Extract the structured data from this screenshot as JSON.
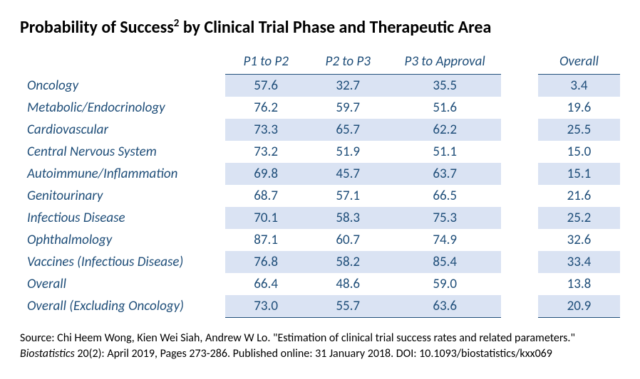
{
  "title_prefix": "Probability of Success",
  "title_sup": "2",
  "title_suffix": " by Clinical Trial Phase and Therapeutic Area",
  "table": {
    "type": "table",
    "header_color": "#1f4e79",
    "band_color_even": "#dae3f3",
    "band_color_odd": "#ffffff",
    "text_color": "#1f4e79",
    "border_color": "#1f4e79",
    "font_size_pt": 14,
    "columns": [
      "P1 to P2",
      "P2 to P3",
      "P3 to Approval",
      "Overall"
    ],
    "rows": [
      {
        "label": "Oncology",
        "values": [
          "57.6",
          "32.7",
          "35.5",
          "3.4"
        ]
      },
      {
        "label": "Metabolic/Endocrinology",
        "values": [
          "76.2",
          "59.7",
          "51.6",
          "19.6"
        ]
      },
      {
        "label": "Cardiovascular",
        "values": [
          "73.3",
          "65.7",
          "62.2",
          "25.5"
        ]
      },
      {
        "label": "Central Nervous System",
        "values": [
          "73.2",
          "51.9",
          "51.1",
          "15.0"
        ]
      },
      {
        "label": "Autoimmune/Inflammation",
        "values": [
          "69.8",
          "45.7",
          "63.7",
          "15.1"
        ]
      },
      {
        "label": "Genitourinary",
        "values": [
          "68.7",
          "57.1",
          "66.5",
          "21.6"
        ]
      },
      {
        "label": "Infectious Disease",
        "values": [
          "70.1",
          "58.3",
          "75.3",
          "25.2"
        ]
      },
      {
        "label": "Ophthalmology",
        "values": [
          "87.1",
          "60.7",
          "74.9",
          "32.6"
        ]
      },
      {
        "label": "Vaccines (Infectious Disease)",
        "values": [
          "76.8",
          "58.2",
          "85.4",
          "33.4"
        ]
      },
      {
        "label": "Overall",
        "values": [
          "66.4",
          "48.6",
          "59.0",
          "13.8"
        ]
      },
      {
        "label": "Overall (Excluding Oncology)",
        "values": [
          "73.0",
          "55.7",
          "63.6",
          "20.9"
        ]
      }
    ]
  },
  "source": {
    "prefix": "Source: Chi Heem Wong, Kien Wei Siah, Andrew W Lo. \"Estimation of clinical trial success rates and related parameters.\" ",
    "journal": "Biostatistics",
    "suffix": " 20(2): April 2019, Pages 273-286. Published online: 31 January 2018. DOI: 10.1093/biostatistics/kxx069"
  }
}
